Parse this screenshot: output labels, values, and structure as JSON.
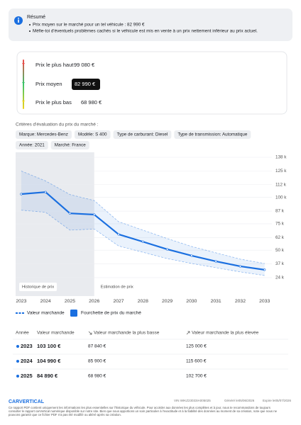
{
  "summary": {
    "title": "Résumé",
    "items": [
      "Prix moyen sur le marché pour un tel véhicule : 82 990 €",
      "Méfie-toi d'éventuels problèmes cachés si le véhicule est mis en vente à un prix nettement inférieur au prix actuel."
    ]
  },
  "prices": {
    "rows": [
      {
        "label": "Prix le plus haut",
        "value": "99 080 €"
      },
      {
        "label": "Prix moyen",
        "value": "82 990 €"
      },
      {
        "label": "Prix le plus bas",
        "value": "68 980 €"
      }
    ]
  },
  "criteria": {
    "title": "Critères d'évaluation du prix du marché :",
    "chips": [
      "Marque: Mercedes-Benz",
      "Modèle: S 400",
      "Type de carburant: Diesel",
      "Type de transmission: Automatique",
      "Année: 2021",
      "Marché: France"
    ]
  },
  "chart_data": {
    "type": "line",
    "history_label": "Historique de prix",
    "forecast_label": "Estimation de prix",
    "history_until": 2026,
    "x": [
      2023,
      2024,
      2025,
      2026,
      2027,
      2028,
      2029,
      2030,
      2031,
      2032,
      2033
    ],
    "xlim": [
      2022.77,
      2033.3
    ],
    "xticks": [
      2023,
      2024,
      2025,
      2026,
      2027,
      2028,
      2029,
      2030,
      2031,
      2032,
      2033
    ],
    "ylim": [
      6500,
      142700
    ],
    "yticks": [
      {
        "value": 24000,
        "label": "24 k"
      },
      {
        "value": 37000,
        "label": "37 k"
      },
      {
        "value": 50000,
        "label": "50 k"
      },
      {
        "value": 62000,
        "label": "62 k"
      },
      {
        "value": 75000,
        "label": "75 k"
      },
      {
        "value": 87000,
        "label": "87 k"
      },
      {
        "value": 100000,
        "label": "100 k"
      },
      {
        "value": 112000,
        "label": "112 k"
      },
      {
        "value": 125000,
        "label": "125 k"
      },
      {
        "value": 138000,
        "label": "138 k"
      }
    ],
    "grid": true,
    "series": [
      {
        "name": "Valeur marchande",
        "color": "#1a6fe0",
        "values": [
          103100,
          104990,
          84890,
          83700,
          65000,
          58000,
          50800,
          44800,
          39400,
          34700,
          31400
        ]
      },
      {
        "name": "Fourchette de prix du marché",
        "color": "#1a6fe0",
        "upper": [
          125000,
          115600,
          102700,
          97000,
          77000,
          69000,
          61000,
          53500,
          47500,
          41500,
          37400
        ],
        "lower": [
          87840,
          85900,
          68980,
          70000,
          54000,
          48000,
          42000,
          37400,
          33400,
          29400,
          26000
        ]
      }
    ]
  },
  "table": {
    "headers": [
      "Année",
      "Valeur marchande",
      "Valeur marchande la plus basse",
      "Valeur marchande la plus élevée"
    ],
    "rows": [
      [
        "2023",
        "103 100 €",
        "87 840 €",
        "125 000 €"
      ],
      [
        "2024",
        "104 990 €",
        "85 900 €",
        "115 600 €"
      ],
      [
        "2025",
        "84 890 €",
        "68 980 €",
        "102 700 €"
      ]
    ]
  },
  "footer": {
    "brand": "CARVERTICAL",
    "vin": "VIN WIKZ23033IA005025",
    "generated": "Généré le05/06/2026",
    "expires": "Expire le05/07/2026",
    "disclaimer": [
      "Ce rapport PDF contient uniquement les informations les plus essentielles sur l'historique du véhicule. Pour accéder aux données les plus complètes et à jour, nous te recommandons de toujours",
      "consulter le rapport carVertical numérique disponible sur notre site. Bien que nous apportions un soin particulier à l'exactitude et à la fiabilité des données au moment de sa création, note que nous ne",
      "pouvons garantir que ce fichier PDF n'a pas été modifié ou altéré après sa création."
    ]
  }
}
